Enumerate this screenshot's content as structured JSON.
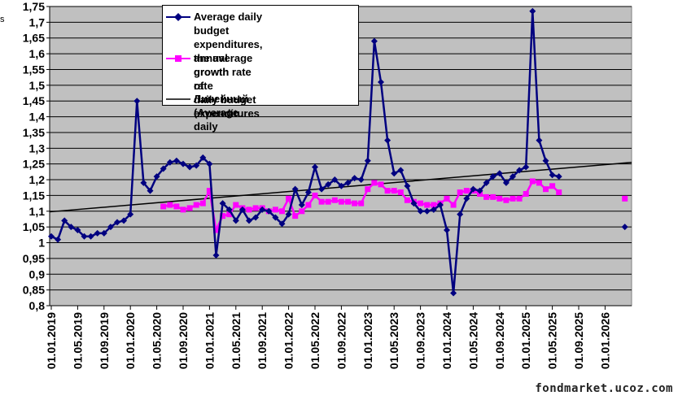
{
  "chart_data": {
    "type": "line",
    "ylim": [
      0.8,
      1.75
    ],
    "ytick_labels": [
      "1,75",
      "1,7",
      "1,65",
      "1,6",
      "1,55",
      "1,5",
      "1,45",
      "1,4",
      "1,35",
      "1,3",
      "1,25",
      "1,2",
      "1,15",
      "1,1",
      "1,05",
      "1",
      "0,95",
      "0,9",
      "0,85",
      "0,8"
    ],
    "ytick_values": [
      1.75,
      1.7,
      1.65,
      1.6,
      1.55,
      1.5,
      1.45,
      1.4,
      1.35,
      1.3,
      1.25,
      1.2,
      1.15,
      1.1,
      1.05,
      1.0,
      0.95,
      0.9,
      0.85,
      0.8
    ],
    "xtick_labels": [
      "01.01.2019",
      "01.05.2019",
      "01.09.2019",
      "01.01.2020",
      "01.05.2020",
      "01.09.2020",
      "01.01.2021",
      "01.05.2021",
      "01.09.2021",
      "01.01.2022",
      "01.05.2022",
      "01.09.2022",
      "01.01.2023",
      "01.05.2023",
      "01.09.2023",
      "01.01.2024",
      "01.05.2024",
      "01.09.2024",
      "01.01.2025",
      "01.05.2025",
      "01.09.2025",
      "01.01.2026"
    ],
    "grid": true,
    "plot_background": "#c0c0c0",
    "legend": {
      "position": "top-left, inside plot"
    },
    "series": [
      {
        "name": "Average daily budget\nexpenditures,  annual growth\nrate",
        "color": "#000080",
        "marker": "diamond",
        "values": [
          1.02,
          1.01,
          1.07,
          1.05,
          1.04,
          1.02,
          1.02,
          1.03,
          1.03,
          1.05,
          1.065,
          1.07,
          1.09,
          1.45,
          1.19,
          1.165,
          1.21,
          1.235,
          1.255,
          1.26,
          1.25,
          1.24,
          1.245,
          1.27,
          1.25,
          0.96,
          1.125,
          1.105,
          1.07,
          1.105,
          1.07,
          1.08,
          1.105,
          1.1,
          1.08,
          1.06,
          1.09,
          1.17,
          1.12,
          1.16,
          1.24,
          1.17,
          1.185,
          1.2,
          1.18,
          1.19,
          1.205,
          1.2,
          1.26,
          1.64,
          1.51,
          1.325,
          1.22,
          1.23,
          1.18,
          1.125,
          1.1,
          1.1,
          1.105,
          1.12,
          1.04,
          0.84,
          1.09,
          1.14,
          1.17,
          1.165,
          1.19,
          1.21,
          1.22,
          1.19,
          1.21,
          1.23,
          1.24,
          1.735,
          1.325,
          1.26,
          1.215,
          1.21,
          null,
          null,
          null,
          null,
          null,
          null,
          null,
          null,
          null,
          1.05
        ]
      },
      {
        "name": "the average growth rate of\ndaily budget expenditures",
        "color": "#ff00ff",
        "marker": "square",
        "values": [
          null,
          null,
          null,
          null,
          null,
          null,
          null,
          null,
          null,
          null,
          null,
          null,
          null,
          null,
          null,
          null,
          null,
          1.115,
          1.12,
          1.115,
          1.105,
          1.11,
          1.12,
          1.125,
          1.165,
          1.04,
          1.085,
          1.09,
          1.12,
          1.11,
          1.105,
          1.11,
          1.11,
          1.1,
          1.105,
          1.1,
          1.14,
          1.085,
          1.1,
          1.12,
          1.15,
          1.13,
          1.13,
          1.135,
          1.13,
          1.13,
          1.125,
          1.125,
          1.17,
          1.19,
          1.185,
          1.165,
          1.165,
          1.16,
          1.135,
          1.13,
          1.125,
          1.12,
          1.12,
          1.125,
          1.14,
          1.12,
          1.16,
          1.165,
          1.165,
          1.155,
          1.145,
          1.145,
          1.14,
          1.135,
          1.14,
          1.14,
          1.155,
          1.195,
          1.19,
          1.17,
          1.18,
          1.16,
          null,
          null,
          null,
          null,
          null,
          null,
          null,
          null,
          null,
          1.14
        ]
      },
      {
        "name": "Линейный (Average daily",
        "color": "#000000",
        "marker": "none",
        "trend": [
          1.098,
          1.255
        ]
      }
    ]
  },
  "watermark": "fondmarket.ucoz.com",
  "corner_glyph": "s"
}
